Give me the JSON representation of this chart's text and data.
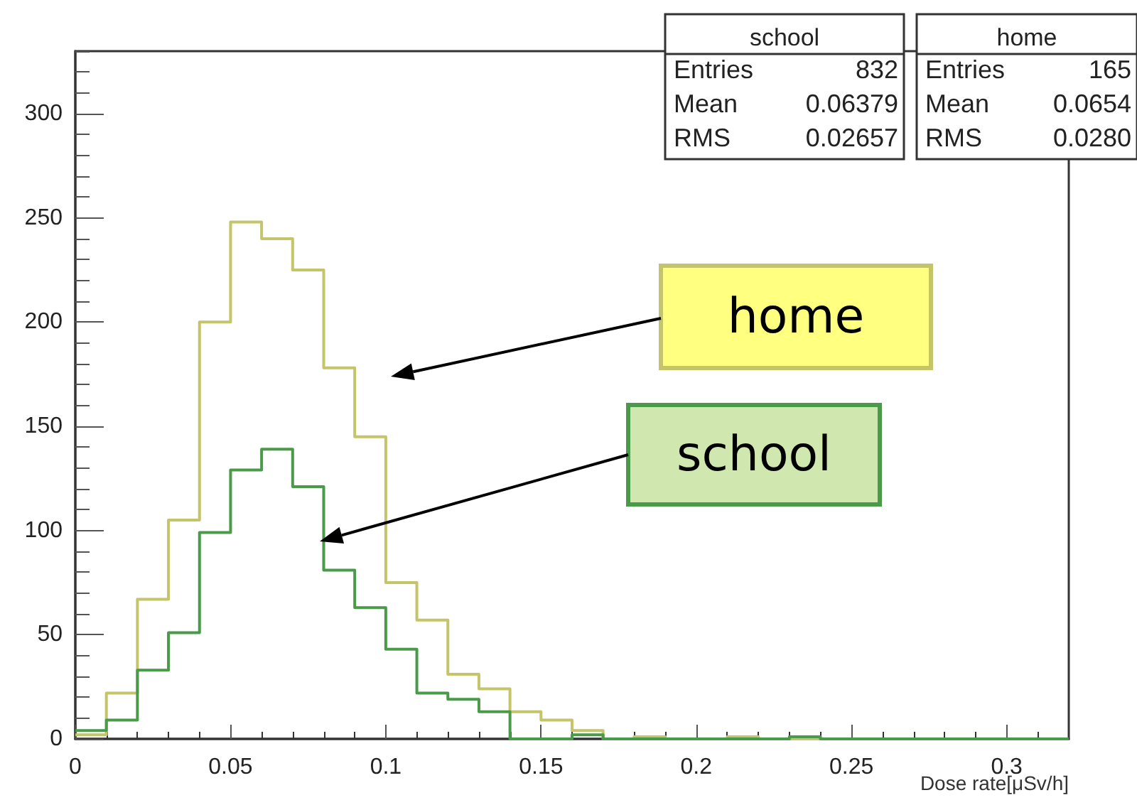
{
  "chart_data": {
    "type": "histogram",
    "xlabel": "Dose rate[μSv/h]",
    "bins": [
      0,
      0.01,
      0.02,
      0.03,
      0.04,
      0.05,
      0.06,
      0.07,
      0.08,
      0.09,
      0.1,
      0.11,
      0.12,
      0.13,
      0.14,
      0.15,
      0.16,
      0.17,
      0.18,
      0.19,
      0.2,
      0.21,
      0.22,
      0.23,
      0.24,
      0.25,
      0.26,
      0.27,
      0.28,
      0.29,
      0.3,
      0.31,
      0.32
    ],
    "series": [
      {
        "name": "school",
        "color": "#4a9a4a",
        "values": [
          4,
          9,
          33,
          51,
          99,
          129,
          139,
          121,
          81,
          63,
          43,
          22,
          19,
          13,
          0,
          0,
          2,
          0,
          0,
          0,
          0,
          0,
          0,
          1,
          0,
          0,
          0,
          0,
          0,
          0,
          0,
          0
        ]
      },
      {
        "name": "home",
        "color": "#c4c46a",
        "values": [
          2,
          22,
          67,
          105,
          200,
          248,
          240,
          225,
          178,
          145,
          75,
          57,
          31,
          24,
          13,
          9,
          4,
          0,
          1,
          0,
          0,
          1,
          0,
          0,
          0,
          0,
          0,
          0,
          0,
          0,
          0,
          0
        ]
      }
    ],
    "annotations": [
      "Entries",
      "832",
      "Mean",
      "0.06379",
      "RMS",
      "0.02657",
      "Entries",
      "165",
      "Mean",
      "0.0654",
      "RMS",
      "0.0280"
    ],
    "xlim": [
      0,
      0.32
    ],
    "xticks": [
      0,
      0.05,
      0.1,
      0.15,
      0.2,
      0.25,
      0.3
    ],
    "ylim": [
      0,
      330
    ],
    "yticks": [
      0,
      {
        "value": 10,
        "label": null
      },
      {
        "value": 20,
        "label": null
      },
      {
        "value": 30,
        "label": null
      },
      {
        "value": 40,
        "label": null
      },
      50,
      {
        "value": 60,
        "label": null
      },
      {
        "value": 70,
        "label": null
      },
      {
        "value": 80,
        "label": null
      },
      {
        "value": 90,
        "label": null
      },
      100,
      {
        "value": 110,
        "label": null
      },
      {
        "value": 120,
        "label": null
      },
      {
        "value": 130,
        "label": null
      },
      {
        "value": 140,
        "label": null
      },
      150,
      {
        "value": 160,
        "label": null
      },
      {
        "value": 170,
        "label": null
      },
      {
        "value": 180,
        "label": null
      },
      {
        "value": 190,
        "label": null
      },
      200,
      {
        "value": 210,
        "label": null
      },
      {
        "value": 220,
        "label": null
      },
      {
        "value": 230,
        "label": null
      },
      {
        "value": 240,
        "label": null
      },
      250,
      {
        "value": 260,
        "label": null
      },
      {
        "value": 270,
        "label": null
      },
      {
        "value": 280,
        "label": null
      },
      {
        "value": 290,
        "label": null
      },
      300,
      {
        "value": 310,
        "label": null
      },
      {
        "value": 320,
        "label": null
      },
      {
        "value": 330,
        "label": null
      }
    ],
    "grid": false,
    "legend": false
  }
}
